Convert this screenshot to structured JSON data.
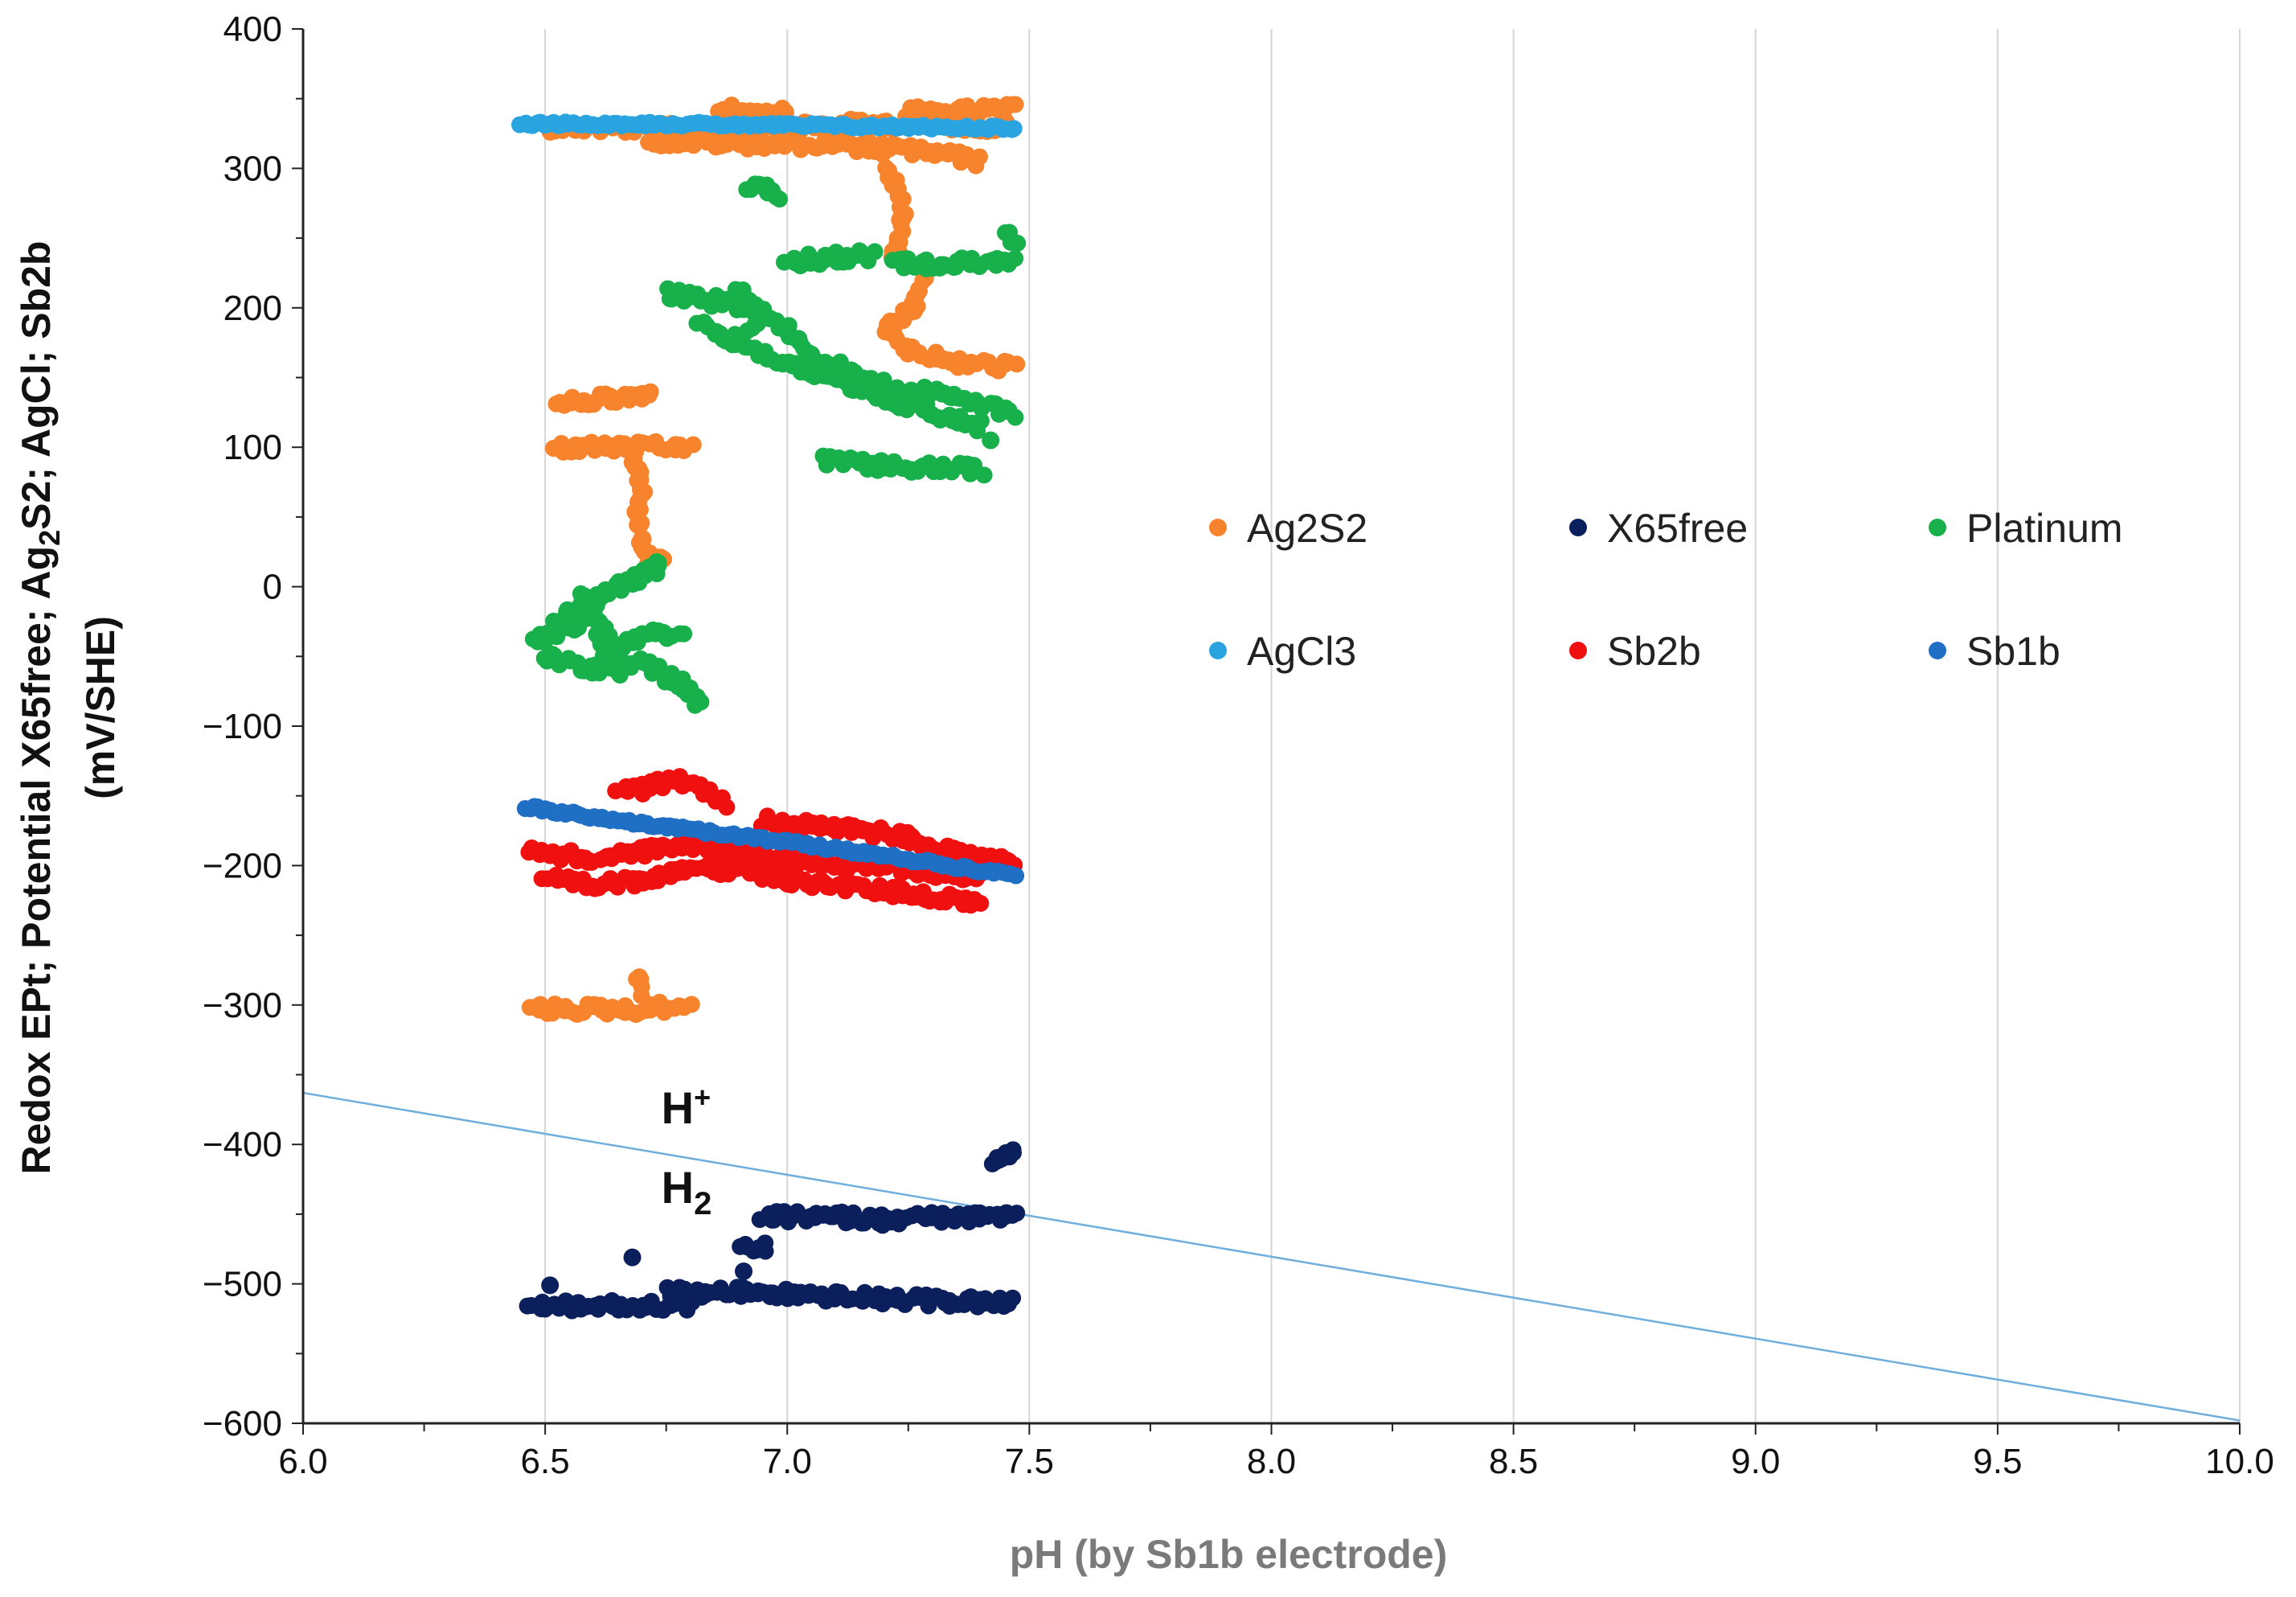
{
  "chart_data": {
    "type": "scatter",
    "title": "",
    "xlabel": "pH (by Sb1b electrode)",
    "ylabel_line1": "Redox EPt; Potential X65free; Ag",
    "ylabel_sub1": "2",
    "ylabel_mid": "S2;  AgCl; Sb2b",
    "ylabel_line2": "(mV/SHE)",
    "xlim": [
      6.0,
      10.0
    ],
    "ylim": [
      -600,
      400
    ],
    "x_ticks": [
      6.0,
      6.5,
      7.0,
      7.5,
      8.0,
      8.5,
      9.0,
      9.5,
      10.0
    ],
    "x_tick_labels": [
      "6.0",
      "6.5",
      "7.0",
      "7.5",
      "8.0",
      "8.5",
      "9.0",
      "9.5",
      "10.0"
    ],
    "y_ticks": [
      -600,
      -500,
      -400,
      -300,
      -200,
      -100,
      0,
      100,
      200,
      300,
      400
    ],
    "y_tick_labels": [
      "−600",
      "−500",
      "−400",
      "−300",
      "−200",
      "−100",
      "0",
      "100",
      "200",
      "300",
      "400"
    ],
    "grid": "vertical",
    "legend_position": "right-middle",
    "series": [
      {
        "name": "Ag2S2",
        "color": "#F7832C",
        "segments": [
          [
            [
              6.5,
              330
            ],
            [
              6.8,
              328
            ],
            [
              7.0,
              330
            ],
            [
              7.2,
              332
            ],
            [
              7.46,
              330
            ]
          ],
          [
            [
              6.72,
              320
            ],
            [
              6.9,
              318
            ],
            [
              7.1,
              317
            ],
            [
              7.3,
              312
            ],
            [
              7.4,
              305
            ]
          ],
          [
            [
              6.86,
              342
            ],
            [
              7.0,
              340
            ]
          ],
          [
            [
              7.25,
              340
            ],
            [
              7.47,
              342
            ]
          ],
          [
            [
              7.2,
              310
            ],
            [
              7.22,
              290
            ],
            [
              7.24,
              270
            ],
            [
              7.23,
              250
            ],
            [
              7.22,
              235
            ]
          ],
          [
            [
              7.28,
              220
            ],
            [
              7.26,
              200
            ],
            [
              7.2,
              185
            ],
            [
              7.25,
              170
            ],
            [
              7.35,
              160
            ],
            [
              7.47,
              158
            ]
          ],
          [
            [
              6.52,
              130
            ],
            [
              6.6,
              134
            ],
            [
              6.7,
              136
            ],
            [
              6.72,
              138
            ]
          ],
          [
            [
              6.52,
              100
            ],
            [
              6.65,
              100
            ],
            [
              6.8,
              100
            ]
          ],
          [
            [
              6.68,
              95
            ],
            [
              6.7,
              70
            ],
            [
              6.69,
              50
            ],
            [
              6.7,
              30
            ],
            [
              6.72,
              15
            ],
            [
              6.75,
              20
            ]
          ],
          [
            [
              6.47,
              -303
            ],
            [
              6.6,
              -303
            ],
            [
              6.7,
              -303
            ],
            [
              6.8,
              -300
            ]
          ],
          [
            [
              6.7,
              -290
            ],
            [
              6.69,
              -280
            ]
          ]
        ]
      },
      {
        "name": "X65free",
        "color": "#0A1F5C",
        "segments": [
          [
            [
              6.47,
              -515
            ],
            [
              6.6,
              -516
            ],
            [
              6.7,
              -516
            ],
            [
              6.8,
              -515
            ]
          ],
          [
            [
              6.75,
              -506
            ],
            [
              6.9,
              -506
            ],
            [
              7.05,
              -508
            ],
            [
              7.2,
              -511
            ],
            [
              7.47,
              -514
            ]
          ],
          [
            [
              6.95,
              -452
            ],
            [
              7.1,
              -452
            ],
            [
              7.2,
              -454
            ],
            [
              7.3,
              -452
            ],
            [
              7.47,
              -453
            ]
          ],
          [
            [
              6.9,
              -472
            ],
            [
              6.96,
              -475
            ]
          ],
          [
            [
              7.42,
              -413
            ],
            [
              7.44,
              -408
            ],
            [
              7.47,
              -406
            ]
          ],
          [
            [
              6.51,
              -501
            ]
          ],
          [
            [
              6.68,
              -481
            ]
          ],
          [
            [
              6.91,
              -491
            ]
          ]
        ]
      },
      {
        "name": "Platinum",
        "color": "#18B04A",
        "segments": [
          [
            [
              6.47,
              -40
            ],
            [
              6.55,
              -30
            ],
            [
              6.6,
              -20
            ],
            [
              6.65,
              -45
            ],
            [
              6.7,
              -35
            ],
            [
              6.78,
              -35
            ]
          ],
          [
            [
              6.5,
              -50
            ],
            [
              6.6,
              -60
            ],
            [
              6.7,
              -55
            ],
            [
              6.78,
              -70
            ],
            [
              6.82,
              -83
            ]
          ],
          [
            [
              6.52,
              -25
            ],
            [
              6.6,
              -10
            ],
            [
              6.65,
              0
            ],
            [
              6.72,
              10
            ],
            [
              6.74,
              18
            ]
          ],
          [
            [
              6.58,
              -5
            ],
            [
              6.62,
              -45
            ],
            [
              6.66,
              -65
            ]
          ],
          [
            [
              6.75,
              210
            ],
            [
              6.85,
              205
            ],
            [
              6.92,
              200
            ],
            [
              7.0,
              185
            ],
            [
              7.05,
              165
            ],
            [
              7.2,
              145
            ],
            [
              7.35,
              135
            ],
            [
              7.47,
              125
            ]
          ],
          [
            [
              6.82,
              190
            ],
            [
              6.9,
              175
            ],
            [
              7.0,
              160
            ],
            [
              7.15,
              140
            ],
            [
              7.3,
              125
            ],
            [
              7.4,
              115
            ]
          ],
          [
            [
              6.9,
              212
            ],
            [
              6.95,
              200
            ],
            [
              6.92,
              185
            ]
          ],
          [
            [
              7.0,
              233
            ],
            [
              7.1,
              236
            ],
            [
              7.18,
              238
            ]
          ],
          [
            [
              7.22,
              232
            ],
            [
              7.35,
              232
            ],
            [
              7.47,
              235
            ]
          ],
          [
            [
              7.45,
              255
            ],
            [
              7.47,
              245
            ]
          ],
          [
            [
              6.92,
              285
            ],
            [
              6.96,
              285
            ],
            [
              6.98,
              280
            ]
          ],
          [
            [
              7.07,
              90
            ],
            [
              7.2,
              87
            ],
            [
              7.3,
              85
            ],
            [
              7.4,
              84
            ]
          ],
          [
            [
              7.42,
              105
            ]
          ]
        ]
      },
      {
        "name": "AgCl3",
        "color": "#2AA4E0",
        "segments": [
          [
            [
              6.45,
              332
            ],
            [
              6.7,
              332
            ],
            [
              7.0,
              331
            ],
            [
              7.2,
              330
            ],
            [
              7.47,
              329
            ]
          ]
        ]
      },
      {
        "name": "Sb2b",
        "color": "#F01010",
        "segments": [
          [
            [
              6.47,
              -190
            ],
            [
              6.6,
              -195
            ],
            [
              6.7,
              -190
            ],
            [
              6.8,
              -185
            ],
            [
              6.9,
              -190
            ],
            [
              7.0,
              -195
            ],
            [
              7.2,
              -200
            ],
            [
              7.4,
              -210
            ]
          ],
          [
            [
              6.5,
              -210
            ],
            [
              6.6,
              -215
            ],
            [
              6.7,
              -210
            ],
            [
              6.8,
              -200
            ],
            [
              7.0,
              -210
            ],
            [
              7.2,
              -218
            ],
            [
              7.4,
              -226
            ]
          ],
          [
            [
              6.65,
              -150
            ],
            [
              6.72,
              -142
            ],
            [
              6.78,
              -138
            ],
            [
              6.82,
              -145
            ],
            [
              6.87,
              -155
            ]
          ],
          [
            [
              6.95,
              -168
            ],
            [
              7.1,
              -172
            ],
            [
              7.25,
              -180
            ],
            [
              7.4,
              -195
            ],
            [
              7.47,
              -197
            ]
          ]
        ]
      },
      {
        "name": "Sb1b",
        "color": "#1F6FC5",
        "segments": [
          [
            [
              6.46,
              -158
            ],
            [
              6.7,
              -170
            ],
            [
              7.0,
              -183
            ],
            [
              7.2,
              -193
            ],
            [
              7.47,
              -207
            ]
          ]
        ]
      }
    ],
    "reference_line": {
      "name": "H+/H2 boundary",
      "color": "#6FAEDD",
      "points": [
        [
          6.0,
          -363
        ],
        [
          10.0,
          -598
        ]
      ]
    },
    "annotations": [
      {
        "base": "H",
        "sup": "+",
        "sub": "",
        "x": 6.74,
        "y": -385
      },
      {
        "base": "H",
        "sup": "",
        "sub": "2",
        "x": 6.74,
        "y": -442
      }
    ]
  }
}
